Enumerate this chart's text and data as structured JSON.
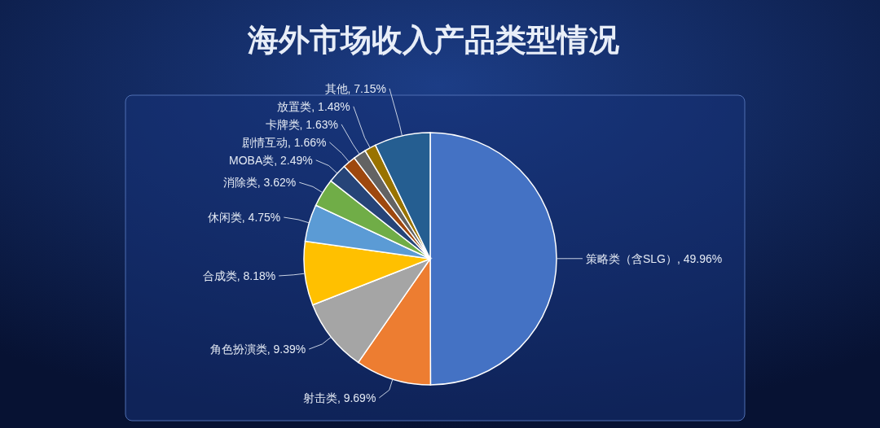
{
  "chart_data": {
    "type": "pie",
    "title": "海外市场收入产品类型情况",
    "categories": [
      "策略类（含SLG）",
      "射击类",
      "角色扮演类",
      "合成类",
      "休闲类",
      "消除类",
      "MOBA类",
      "剧情互动",
      "卡牌类",
      "放置类",
      "其他"
    ],
    "values": [
      49.96,
      9.69,
      9.39,
      8.18,
      4.75,
      3.62,
      2.49,
      1.66,
      1.63,
      1.48,
      7.15
    ],
    "colors": [
      "#4472c4",
      "#ed7d31",
      "#a5a5a5",
      "#ffc000",
      "#5b9bd5",
      "#70ad47",
      "#264478",
      "#9e480e",
      "#636363",
      "#997300",
      "#255e91"
    ],
    "value_labels": [
      ", 49.96%",
      ", 9.69%",
      ", 9.39%",
      ", 8.18%",
      ", 4.75%",
      ", 3.62%",
      ", 2.49%",
      ", 1.66%",
      ", 1.63%",
      ", 1.48%",
      ", 7.15%"
    ]
  }
}
